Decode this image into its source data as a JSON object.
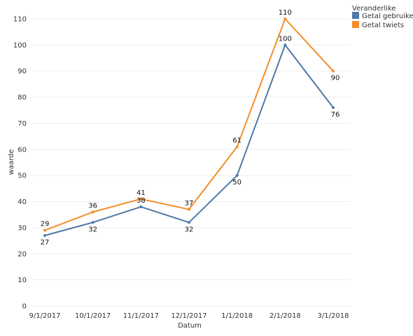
{
  "chart_data": {
    "type": "line",
    "x": [
      "9/1/2017",
      "10/1/2017",
      "11/1/2017",
      "12/1/2017",
      "1/1/2018",
      "2/1/2018",
      "3/1/2018"
    ],
    "series": [
      {
        "name": "Getal gebruikers",
        "color": "#4e79a7",
        "values": [
          27,
          32,
          38,
          32,
          50,
          100,
          76
        ]
      },
      {
        "name": "Getal twiets",
        "color": "#f28e2b",
        "values": [
          29,
          36,
          41,
          37,
          61,
          110,
          90
        ]
      }
    ],
    "xlabel": "Datum",
    "ylabel": "waarde",
    "ylim": [
      0,
      110
    ],
    "yticks": [
      0,
      10,
      20,
      30,
      40,
      50,
      60,
      70,
      80,
      90,
      100,
      110
    ],
    "grid": "horizontal",
    "legend": {
      "title": "Veranderlike",
      "position": "top-right"
    }
  }
}
